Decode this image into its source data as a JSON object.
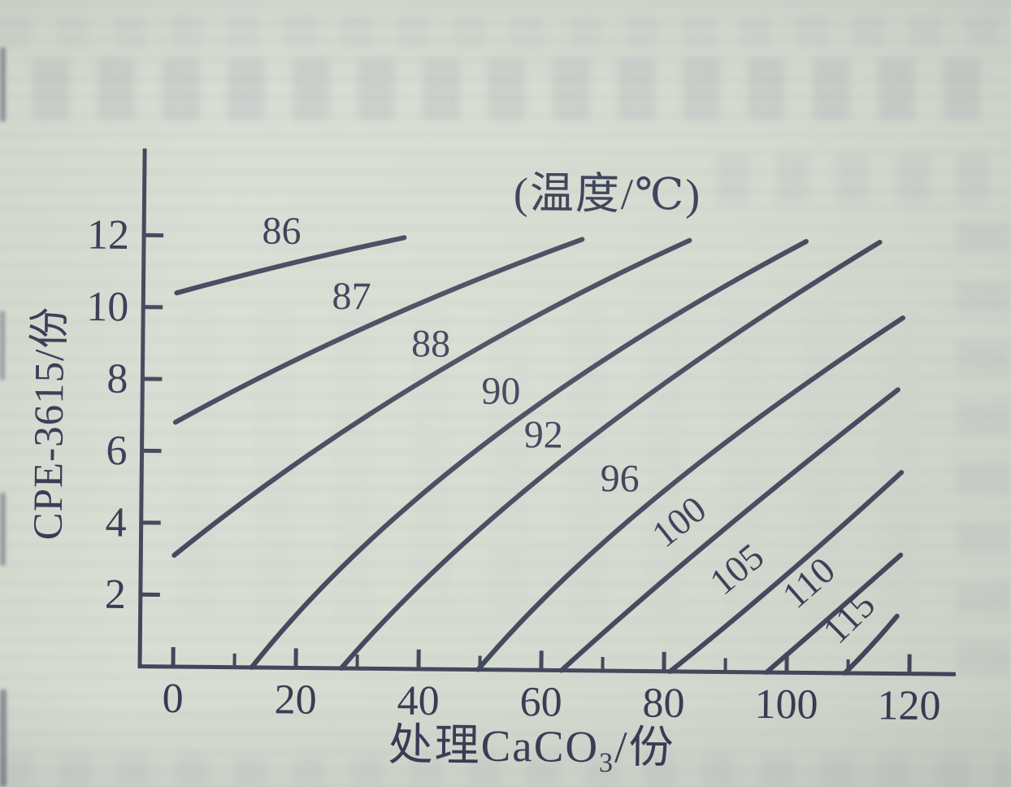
{
  "page": {
    "kind": "scanned-book-figure",
    "paper_color": "#d5dacf",
    "ink_color": "#3f4459",
    "text_color": "#353a52"
  },
  "chart_data": {
    "type": "line",
    "subtype": "contour-isotherm-map",
    "title": "(温度/℃)",
    "xlabel_prefix": "处理CaCO",
    "xlabel_sub": "3",
    "xlabel_suffix": "/份",
    "ylabel": "CPE-3615/份",
    "xlim": [
      0,
      120
    ],
    "ylim": [
      0,
      12
    ],
    "grid": false,
    "legend_position": "none",
    "x_ticks": [
      "0",
      "20",
      "40",
      "60",
      "80",
      "100",
      "120"
    ],
    "x_tick_values": [
      0,
      20,
      40,
      60,
      80,
      100,
      120
    ],
    "x_minor_tick_values": [
      10,
      30,
      50,
      70,
      90,
      110
    ],
    "y_ticks": [
      "2",
      "4",
      "6",
      "8",
      "10",
      "12"
    ],
    "y_tick_values": [
      2,
      4,
      6,
      8,
      10,
      12
    ],
    "series": [
      {
        "label": "86",
        "temperature_c": 86,
        "start": [
          0,
          10.4
        ],
        "control": [
          18.5,
          11.3
        ],
        "end": [
          37,
          12
        ],
        "label_pos": [
          17,
          11.8
        ],
        "label_rotation": 0
      },
      {
        "label": "87",
        "temperature_c": 87,
        "start": [
          0,
          6.8
        ],
        "control": [
          30,
          9.7
        ],
        "end": [
          66,
          12
        ],
        "label_pos": [
          28.5,
          10.0
        ],
        "label_rotation": 0
      },
      {
        "label": "88",
        "temperature_c": 88,
        "start": [
          0,
          3.1
        ],
        "control": [
          37,
          8.3
        ],
        "end": [
          83.5,
          12
        ],
        "label_pos": [
          41.5,
          8.7
        ],
        "label_rotation": 0
      },
      {
        "label": "90",
        "temperature_c": 90,
        "start": [
          12.8,
          0
        ],
        "control": [
          42,
          6.4
        ],
        "end": [
          102.5,
          12
        ],
        "label_pos": [
          53,
          7.4
        ],
        "label_rotation": 0
      },
      {
        "label": "92",
        "temperature_c": 92,
        "start": [
          27.4,
          0
        ],
        "control": [
          56,
          5.8
        ],
        "end": [
          114.5,
          12
        ],
        "label_pos": [
          60,
          6.2
        ],
        "label_rotation": 0
      },
      {
        "label": "96",
        "temperature_c": 96,
        "start": [
          49.7,
          0
        ],
        "control": [
          72,
          4.6
        ],
        "end": [
          118.4,
          9.9
        ],
        "label_pos": [
          72.5,
          5.0
        ],
        "label_rotation": 0
      },
      {
        "label": "100",
        "temperature_c": 100,
        "start": [
          63.3,
          0
        ],
        "control": [
          86,
          3.6
        ],
        "end": [
          117.7,
          7.9
        ],
        "label_pos": [
          83.5,
          3.9
        ],
        "label_rotation": -39
      },
      {
        "label": "105",
        "temperature_c": 105,
        "start": [
          81,
          0
        ],
        "control": [
          98,
          2.35
        ],
        "end": [
          118.4,
          5.6
        ],
        "label_pos": [
          93,
          2.6
        ],
        "label_rotation": -40
      },
      {
        "label": "110",
        "temperature_c": 110,
        "start": [
          96.7,
          0
        ],
        "control": [
          107.5,
          1.62
        ],
        "end": [
          118.4,
          3.3
        ],
        "label_pos": [
          104.8,
          2.25
        ],
        "label_rotation": -42
      },
      {
        "label": "115",
        "temperature_c": 115,
        "start": [
          109.5,
          0
        ],
        "control": [
          114,
          0.78
        ],
        "end": [
          117.9,
          1.6
        ],
        "label_pos": [
          111.5,
          1.3
        ],
        "label_rotation": -45
      }
    ]
  }
}
